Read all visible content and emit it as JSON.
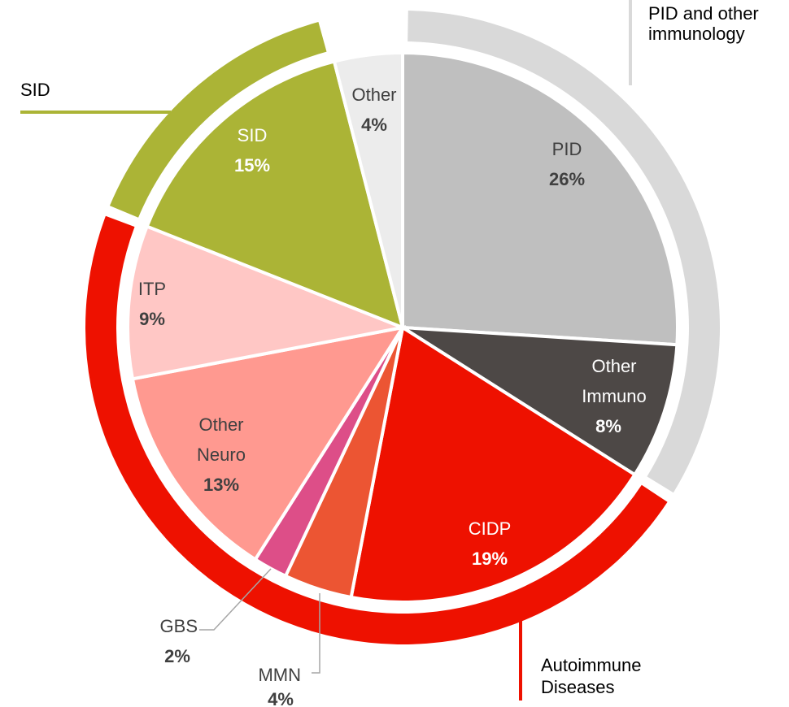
{
  "chart_data": {
    "type": "pie",
    "categories": [
      "PID",
      "Other\nImmuno",
      "CIDP",
      "MMN",
      "GBS",
      "Other\nNeuro",
      "ITP",
      "SID",
      "Other"
    ],
    "values": [
      26,
      8,
      19,
      4,
      2,
      13,
      9,
      15,
      4
    ],
    "value_labels": [
      "26%",
      "8%",
      "19%",
      "4%",
      "2%",
      "13%",
      "9%",
      "15%",
      "4%"
    ],
    "colors": [
      "#bfbfbf",
      "#4d4846",
      "#ee1100",
      "#ec5533",
      "#dd4e88",
      "#ff9990",
      "#ffc7c5",
      "#abb436",
      "#ececec"
    ],
    "groups": [
      {
        "name": "PID and other\nimmunology",
        "color": "#d9d9d9",
        "categories": [
          "PID",
          "Other\nImmuno"
        ]
      },
      {
        "name": "Autoimmune\nDiseases",
        "color": "#ee1100",
        "categories": [
          "CIDP",
          "MMN",
          "GBS",
          "Other\nNeuro",
          "ITP"
        ]
      },
      {
        "name": "SID",
        "color": "#abb436",
        "categories": [
          "SID"
        ]
      }
    ]
  }
}
